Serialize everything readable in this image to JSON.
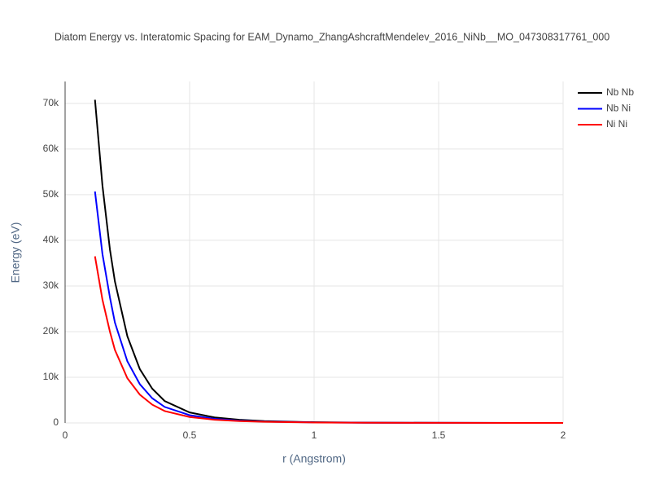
{
  "chart_data": {
    "type": "line",
    "title": "Diatom Energy vs. Interatomic Spacing for EAM_Dynamo_ZhangAshcraftMendelev_2016_NiNb__MO_047308317761_000",
    "x_label": "r (Angstrom)",
    "y_label": "Energy (eV)",
    "x": [
      0.12,
      0.15,
      0.18,
      0.2,
      0.25,
      0.3,
      0.35,
      0.4,
      0.5,
      0.6,
      0.7,
      0.8,
      1.0,
      1.2,
      1.5,
      2.0
    ],
    "series": [
      {
        "name": "Nb Nb",
        "color": "#000000",
        "values": [
          70800,
          52000,
          38000,
          31000,
          19000,
          11800,
          7500,
          4800,
          2300,
          1200,
          700,
          400,
          150,
          60,
          20,
          5
        ]
      },
      {
        "name": "Nb Ni",
        "color": "#0000ff",
        "values": [
          50700,
          37000,
          27500,
          22000,
          13500,
          8500,
          5400,
          3500,
          1700,
          900,
          500,
          300,
          120,
          50,
          15,
          4
        ]
      },
      {
        "name": "Ni Ni",
        "color": "#ff0000",
        "values": [
          36500,
          27000,
          20000,
          16000,
          9800,
          6200,
          4000,
          2600,
          1300,
          700,
          400,
          250,
          100,
          40,
          12,
          3
        ]
      }
    ],
    "xlim": [
      0,
      2
    ],
    "xticks": [
      0,
      0.5,
      1,
      1.5,
      2
    ],
    "ylim": [
      0,
      74800
    ],
    "yticks": [
      0,
      {
        "value": 10000,
        "label": "10k"
      },
      {
        "value": 20000,
        "label": "20k"
      },
      {
        "value": 30000,
        "label": "30k"
      },
      {
        "value": 40000,
        "label": "40k"
      },
      {
        "value": 50000,
        "label": "50k"
      },
      {
        "value": 60000,
        "label": "60k"
      },
      {
        "value": 70000,
        "label": "70k"
      }
    ],
    "grid": true,
    "legend": "top-right"
  }
}
